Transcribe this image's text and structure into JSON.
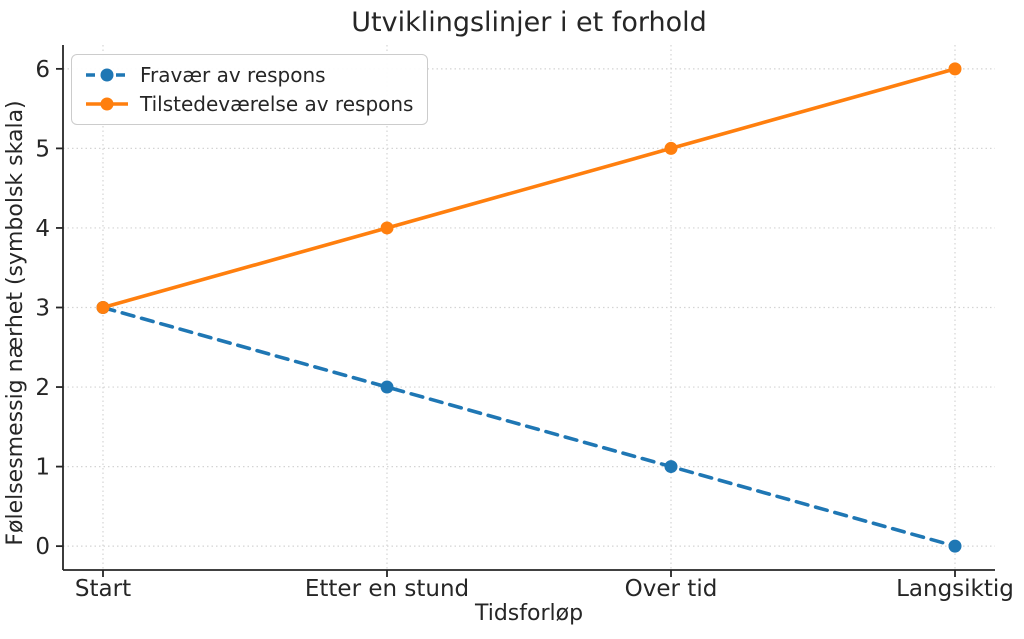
{
  "chart_data": {
    "type": "line",
    "title": "Utviklingslinjer i et forhold",
    "xlabel": "Tidsforløp",
    "ylabel": "Følelsesmessig nærhet (symbolsk skala)",
    "categories": [
      "Start",
      "Etter en stund",
      "Over tid",
      "Langsiktig"
    ],
    "series": [
      {
        "name": "Fravær av respons",
        "values": [
          3,
          2,
          1,
          0
        ],
        "color": "#1f77b4",
        "style": "dashed",
        "marker": "circle"
      },
      {
        "name": "Tilstedeværelse av respons",
        "values": [
          3,
          4,
          5,
          6
        ],
        "color": "#ff7f0e",
        "style": "solid",
        "marker": "circle"
      }
    ],
    "yticks": [
      0,
      1,
      2,
      3,
      4,
      5,
      6
    ],
    "ylim": [
      -0.3,
      6.3
    ],
    "grid": true,
    "grid_style": "dotted",
    "legend_position": "upper left",
    "colors": {
      "series_blue": "#1f77b4",
      "series_orange": "#ff7f0e",
      "spine": "#262626",
      "grid": "#d4d4d4",
      "text": "#262626",
      "legend_border": "#cccccc",
      "background": "#ffffff"
    }
  }
}
